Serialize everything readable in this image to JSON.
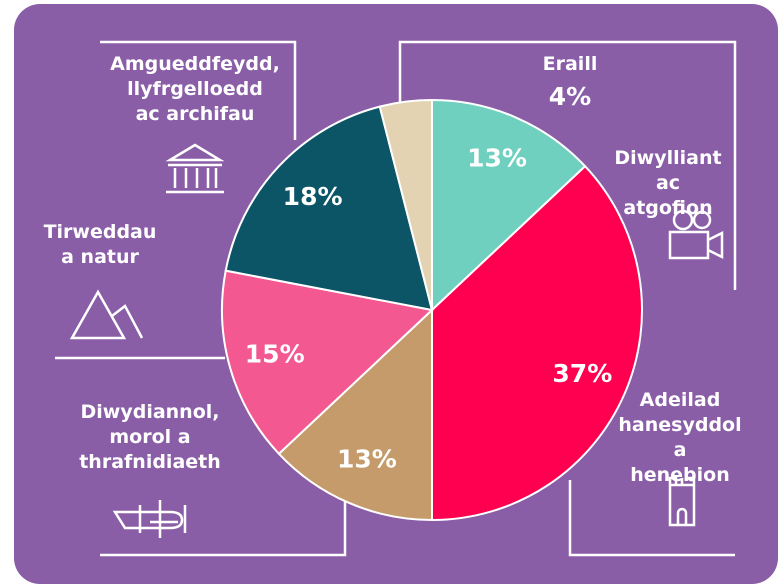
{
  "chart_data": {
    "type": "pie",
    "categories": [
      "Diwylliant ac\natgofion",
      "Adeilad\nhanesyddol a\nhenebion",
      "Diwydiannol,\nmorol a\nthrafnidiaeth",
      "Tirweddau\na natur",
      "Amgueddfeydd,\nllyfrgelloedd\nac archifau",
      "Eraill"
    ],
    "values": [
      13,
      37,
      13,
      15,
      18,
      4
    ],
    "value_labels": [
      "13%",
      "37%",
      "13%",
      "15%",
      "18%",
      "4%"
    ],
    "colors": [
      "#6fd0c0",
      "#ff0050",
      "#c59b6b",
      "#f35990",
      "#0b5567",
      "#e3d3b3"
    ]
  }
}
